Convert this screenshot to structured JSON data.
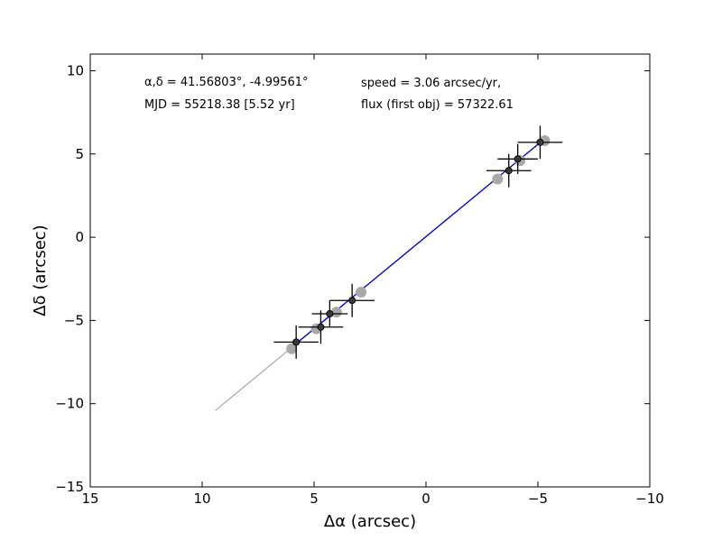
{
  "chart_data": {
    "type": "scatter",
    "title": "",
    "xlabel": "Δα (arcsec)",
    "ylabel": "Δδ (arcsec)",
    "xlim": [
      15,
      -10
    ],
    "ylim": [
      -15,
      11
    ],
    "x_ticks": [
      15,
      10,
      5,
      0,
      -5,
      -10
    ],
    "x_tick_labels": [
      "15",
      "10",
      "5",
      "0",
      "−5",
      "−10"
    ],
    "y_ticks": [
      10,
      5,
      0,
      -5,
      -10,
      -15
    ],
    "y_tick_labels": [
      "10",
      "5",
      "0",
      "−5",
      "−10",
      "−15"
    ],
    "grid": false,
    "annotations": {
      "coords": "α,δ = 41.56803°, -4.99561°",
      "mjd": "MJD = 55218.38 [5.52 yr]",
      "speed": "speed = 3.06 arcsec/yr,",
      "flux": "flux (first obj) = 57322.61"
    },
    "colors": {
      "predicted": "#a8a8a8",
      "fit_line": "#0000cc",
      "observed": "#3a3a3a",
      "errorbar": "#000000"
    },
    "series": [
      {
        "kind": "line",
        "x": [
          9.4,
          -5.2
        ],
        "y": [
          -10.4,
          5.8
        ]
      },
      {
        "kind": "line",
        "x": [
          5.9,
          -5.2
        ],
        "y": [
          -6.5,
          5.8
        ]
      },
      {
        "kind": "points",
        "x": [
          6.0,
          4.9,
          4.0,
          2.9,
          -3.2,
          -4.2,
          -5.3
        ],
        "y": [
          -6.7,
          -5.5,
          -4.5,
          -3.3,
          3.5,
          4.6,
          5.8
        ]
      },
      {
        "kind": "errorbar_points",
        "x": [
          5.8,
          4.7,
          4.3,
          3.3,
          -3.7,
          -4.1,
          -5.1
        ],
        "y": [
          -6.3,
          -5.4,
          -4.6,
          -3.8,
          4.0,
          4.7,
          5.7
        ],
        "xerr": [
          1.0,
          1.0,
          0.8,
          1.0,
          1.0,
          0.9,
          1.0
        ],
        "yerr": [
          1.0,
          1.0,
          0.8,
          1.0,
          1.0,
          0.9,
          1.0
        ]
      }
    ]
  }
}
